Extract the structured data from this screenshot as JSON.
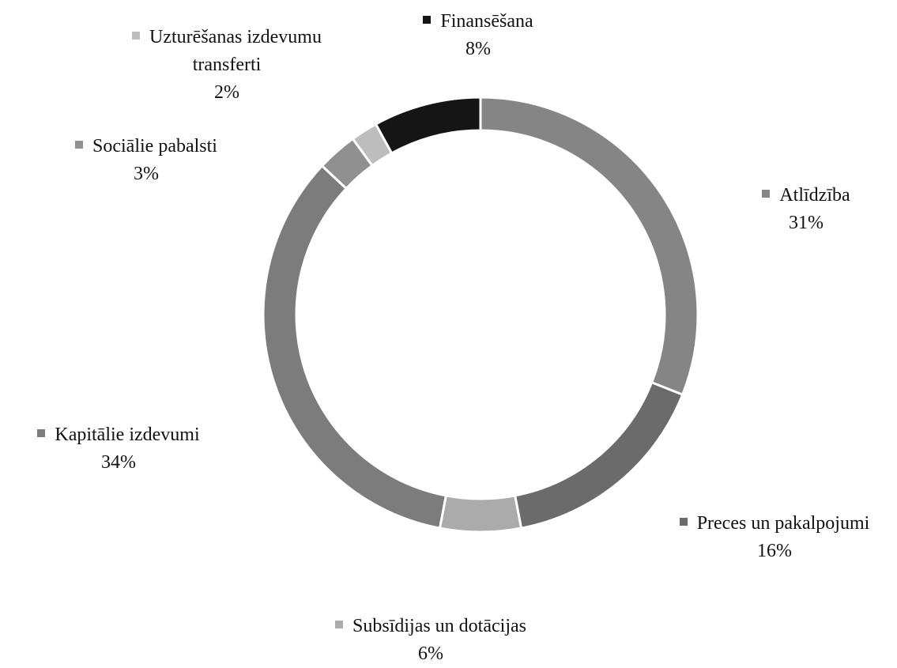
{
  "chart_data": {
    "type": "donut",
    "categories": [
      "Atlīdzība",
      "Preces un pakalpojumi",
      "Subsīdijas un dotācijas",
      "Kapitālie izdevumi",
      "Sociālie pabalsti",
      "Uzturēšanas izdevumu transferti",
      "Finansēšana"
    ],
    "values": [
      31,
      16,
      6,
      34,
      3,
      2,
      8
    ],
    "value_labels": [
      "31%",
      "16%",
      "6%",
      "34%",
      "3%",
      "2%",
      "8%"
    ],
    "colors": [
      "#858585",
      "#6b6b6b",
      "#ababab",
      "#7c7c7c",
      "#909090",
      "#bdbdbd",
      "#151515"
    ]
  }
}
